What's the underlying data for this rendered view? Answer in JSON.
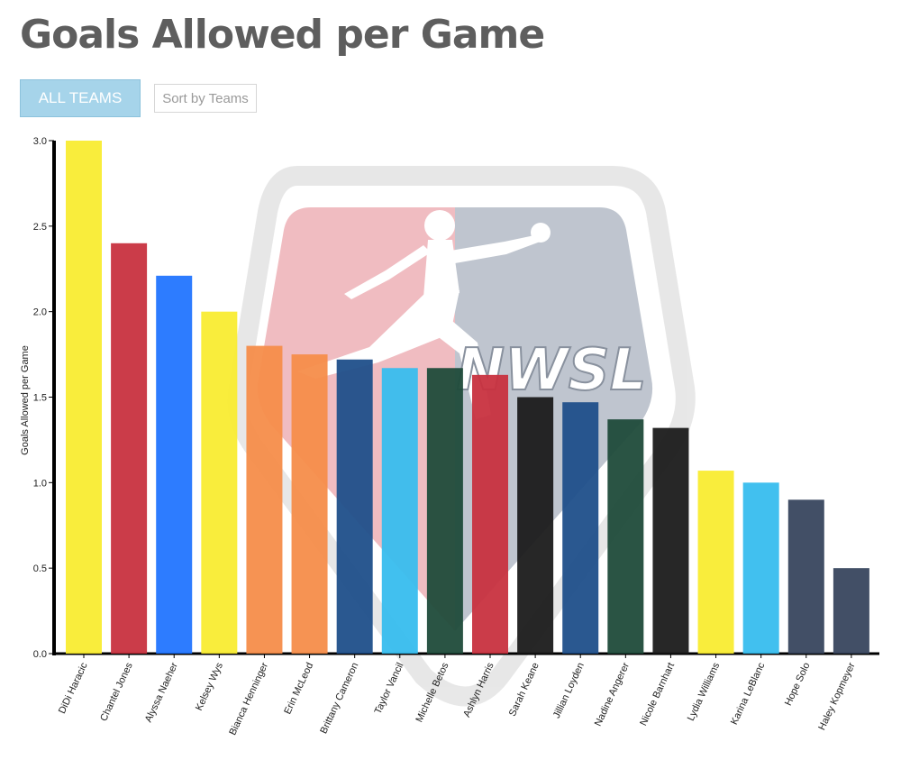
{
  "page": {
    "title": "Goals Allowed per Game"
  },
  "controls": {
    "all_teams_label": "ALL TEAMS",
    "sort_label": "Sort by Teams"
  },
  "watermark": {
    "logo_text": "NWSL",
    "colors": {
      "left": "#efb7bc",
      "right": "#bac1cb",
      "ring": "#e6e6e6"
    }
  },
  "chart_data": {
    "type": "bar",
    "title": "Goals Allowed per Game",
    "ylabel": "Goals Allowed per Game",
    "xlabel": "",
    "ylim": [
      0,
      3.0
    ],
    "yticks": [
      "0.0",
      "0.5",
      "1.0",
      "1.5",
      "2.0",
      "2.5",
      "3.0"
    ],
    "grid": false,
    "categories": [
      "DiDi Haracic",
      "Chantel Jones",
      "Alyssa Naeher",
      "Kelsey Wys",
      "Bianca Henninger",
      "Erin McLeod",
      "Brittany Cameron",
      "Taylor Vancil",
      "Michelle Betos",
      "Ashlyn Harris",
      "Sarah Keane",
      "Jillian Loyden",
      "Nadine Angerer",
      "Nicole Barnhart",
      "Lydia Williams",
      "Karina LeBlanc",
      "Hope Solo",
      "Haley Kopmeyer"
    ],
    "values": [
      3.0,
      2.4,
      2.21,
      2.0,
      1.8,
      1.75,
      1.72,
      1.67,
      1.67,
      1.63,
      1.5,
      1.47,
      1.37,
      1.32,
      1.07,
      1.0,
      0.9,
      0.5
    ],
    "colors": [
      "#f9ec31",
      "#c8313f",
      "#2275ff",
      "#f9ec31",
      "#f58d4a",
      "#f58d4a",
      "#1f4f8a",
      "#37bdee",
      "#1f4b3a",
      "#c8313f",
      "#1b1b1b",
      "#1f4f8a",
      "#1f4b3a",
      "#1b1b1b",
      "#f9ec31",
      "#37bdee",
      "#38465e",
      "#38465e"
    ]
  }
}
